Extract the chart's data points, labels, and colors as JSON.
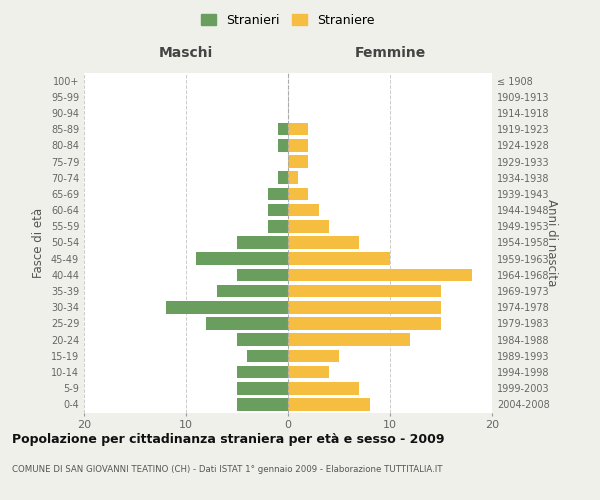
{
  "age_groups": [
    "0-4",
    "5-9",
    "10-14",
    "15-19",
    "20-24",
    "25-29",
    "30-34",
    "35-39",
    "40-44",
    "45-49",
    "50-54",
    "55-59",
    "60-64",
    "65-69",
    "70-74",
    "75-79",
    "80-84",
    "85-89",
    "90-94",
    "95-99",
    "100+"
  ],
  "birth_years": [
    "2004-2008",
    "1999-2003",
    "1994-1998",
    "1989-1993",
    "1984-1988",
    "1979-1983",
    "1974-1978",
    "1969-1973",
    "1964-1968",
    "1959-1963",
    "1954-1958",
    "1949-1953",
    "1944-1948",
    "1939-1943",
    "1934-1938",
    "1929-1933",
    "1924-1928",
    "1919-1923",
    "1914-1918",
    "1909-1913",
    "≤ 1908"
  ],
  "males": [
    5,
    5,
    5,
    4,
    5,
    8,
    12,
    7,
    5,
    9,
    5,
    2,
    2,
    2,
    1,
    0,
    1,
    1,
    0,
    0,
    0
  ],
  "females": [
    8,
    7,
    4,
    5,
    12,
    15,
    15,
    15,
    18,
    10,
    7,
    4,
    3,
    2,
    1,
    2,
    2,
    2,
    0,
    0,
    0
  ],
  "male_color": "#6a9e5e",
  "female_color": "#f5be41",
  "background_color": "#f0f0eb",
  "bar_bg_color": "#ffffff",
  "grid_color": "#cccccc",
  "title": "Popolazione per cittadinanza straniera per età e sesso - 2009",
  "subtitle": "COMUNE DI SAN GIOVANNI TEATINO (CH) - Dati ISTAT 1° gennaio 2009 - Elaborazione TUTTITALIA.IT",
  "xlabel_left": "Maschi",
  "xlabel_right": "Femmine",
  "ylabel_left": "Fasce di età",
  "ylabel_right": "Anni di nascita",
  "legend_male": "Stranieri",
  "legend_female": "Straniere",
  "xlim": 20
}
